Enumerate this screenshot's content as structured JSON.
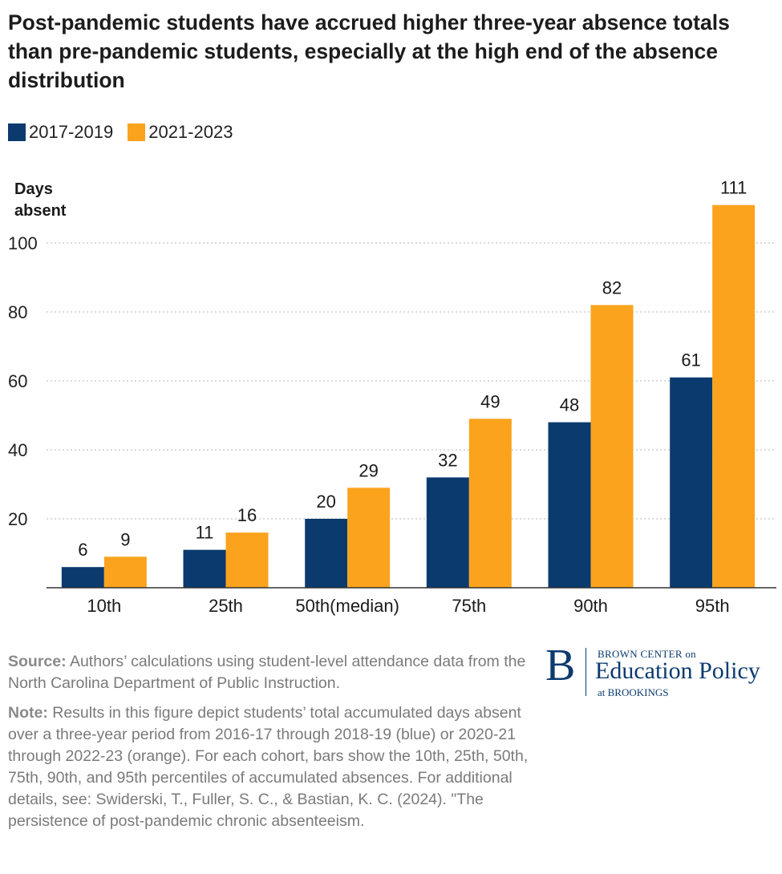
{
  "header": {
    "title": "Post-pandemic students have accrued higher three-year absence totals than pre-pandemic students, especially at the high end of the absence distribution"
  },
  "legend": {
    "items": [
      {
        "label": "2017-2019",
        "color": "#0b3a6e"
      },
      {
        "label": "2021-2023",
        "color": "#fba31d"
      }
    ]
  },
  "chart_data": {
    "type": "bar",
    "title": "Post-pandemic students have accrued higher three-year absence totals than pre-pandemic students, especially at the high end of the absence distribution",
    "xlabel": "",
    "ylabel": "Days absent",
    "ylabel_lines": [
      "Days",
      "absent"
    ],
    "categories": [
      "10th",
      "25th",
      "50th(median)",
      "75th",
      "90th",
      "95th"
    ],
    "series": [
      {
        "name": "2017-2019",
        "color": "#0b3a6e",
        "values": [
          6,
          11,
          20,
          32,
          48,
          61
        ]
      },
      {
        "name": "2021-2023",
        "color": "#fba31d",
        "values": [
          9,
          16,
          29,
          49,
          82,
          111
        ]
      }
    ],
    "ylim": [
      0,
      111
    ],
    "yticks": [
      20,
      40,
      60,
      80,
      100
    ],
    "grid": true,
    "legend_position": "top-left"
  },
  "footer": {
    "source_label": "Source:",
    "source_text": " Authors’ calculations using student-level attendance data from the North Carolina Department of Public Instruction.",
    "note_label": "Note:",
    "note_text": " Results in this figure depict students’ total accumulated days absent over a three-year period from 2016-17 through 2018-19 (blue) or 2020-21 through 2022-23 (orange). For each cohort, bars show the 10th, 25th, 50th, 75th, 90th, and 95th percentiles of accumulated absences. For additional details, see: Swiderski, T., Fuller, S. C., & Bastian, K. C. (2024). \"The persistence of post-pandemic chronic absenteeism."
  },
  "logo": {
    "letter": "B",
    "line1": "BROWN CENTER on",
    "line2": "Education Policy",
    "line3": "at BROOKINGS"
  }
}
